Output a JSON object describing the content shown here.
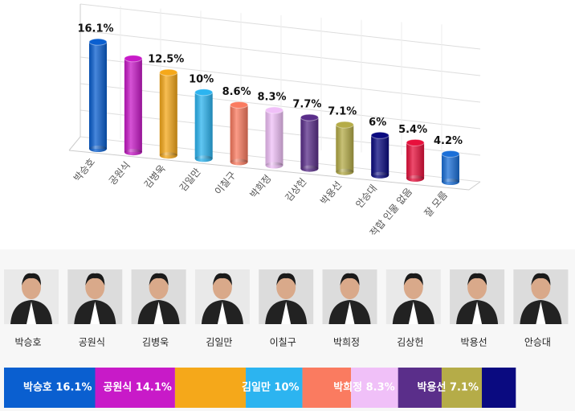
{
  "chart_data": {
    "type": "bar3d",
    "categories": [
      "박승호",
      "공원식",
      "김병욱",
      "김일만",
      "이칠구",
      "박희정",
      "김상헌",
      "박용선",
      "안승대",
      "적합 인물 없음",
      "잘 모름"
    ],
    "values": [
      16.1,
      14.1,
      12.5,
      10,
      8.6,
      8.3,
      7.7,
      7.1,
      6,
      5.4,
      4.2
    ],
    "value_labels": [
      "16.1%",
      null,
      "12.5%",
      "10%",
      "8.6%",
      "8.3%",
      "7.7%",
      "7.1%",
      "6%",
      "5.4%",
      "4.2%"
    ],
    "colors": [
      "#0a5fd0",
      "#c81ac8",
      "#f5a81a",
      "#2cb4f0",
      "#fa7b60",
      "#f0c0f8",
      "#5a2e8a",
      "#b5ac48",
      "#0a0a80",
      "#e8103c",
      "#1a6fd8"
    ],
    "ylim": [
      0,
      20
    ],
    "grid": true,
    "candidates": 9,
    "summary_labels": [
      "박승호 16.1%",
      "공원식 14.1%",
      null,
      "김일만 10%",
      null,
      "박희정 8.3%",
      null,
      "박용선 7.1%",
      null
    ]
  }
}
